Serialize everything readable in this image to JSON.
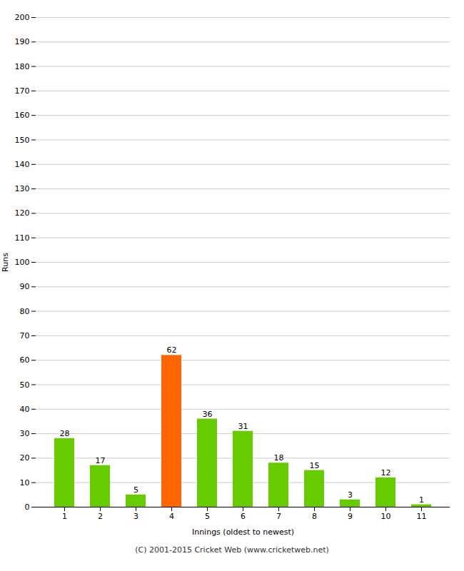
{
  "chart_data": {
    "type": "bar",
    "categories": [
      "1",
      "2",
      "3",
      "4",
      "5",
      "6",
      "7",
      "8",
      "9",
      "10",
      "11"
    ],
    "values": [
      28,
      17,
      5,
      62,
      36,
      31,
      18,
      15,
      3,
      12,
      1
    ],
    "colors": [
      "#66cc00",
      "#66cc00",
      "#66cc00",
      "#ff6600",
      "#66cc00",
      "#66cc00",
      "#66cc00",
      "#66cc00",
      "#66cc00",
      "#66cc00",
      "#66cc00"
    ],
    "xlabel": "Innings (oldest to newest)",
    "ylabel": "Runs",
    "ylim": [
      0,
      200
    ],
    "yticks": [
      0,
      10,
      20,
      30,
      40,
      50,
      60,
      70,
      80,
      90,
      100,
      110,
      120,
      130,
      140,
      150,
      160,
      170,
      180,
      190,
      200
    ],
    "grid": true,
    "data_labels": true,
    "caption": "(C) 2001-2015 Cricket Web (www.cricketweb.net)"
  }
}
